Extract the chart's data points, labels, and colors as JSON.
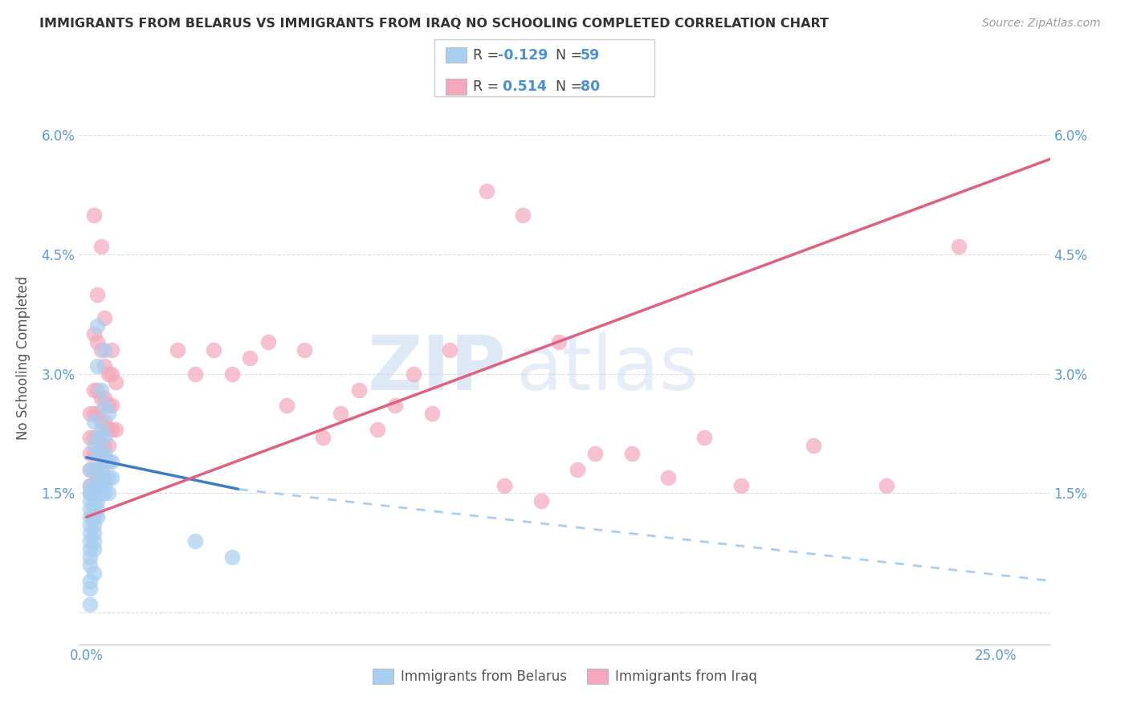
{
  "title": "IMMIGRANTS FROM BELARUS VS IMMIGRANTS FROM IRAQ NO SCHOOLING COMPLETED CORRELATION CHART",
  "source": "Source: ZipAtlas.com",
  "ylabel": "No Schooling Completed",
  "x_ticks": [
    0.0,
    0.05,
    0.1,
    0.15,
    0.2,
    0.25
  ],
  "x_tick_labels_bottom": [
    "0.0%",
    "",
    "",
    "",
    "",
    "25.0%"
  ],
  "y_ticks": [
    0.0,
    0.015,
    0.03,
    0.045,
    0.06
  ],
  "y_tick_labels_left": [
    "",
    "1.5%",
    "3.0%",
    "4.5%",
    "6.0%"
  ],
  "y_tick_labels_right": [
    "",
    "1.5%",
    "3.0%",
    "4.5%",
    "6.0%"
  ],
  "xlim": [
    -0.002,
    0.265
  ],
  "ylim": [
    -0.004,
    0.068
  ],
  "color_belarus": "#a8cef0",
  "color_iraq": "#f4a8bc",
  "color_line_belarus": "#3a7ec8",
  "color_line_iraq": "#e06080",
  "color_trendline_dashed": "#a8cef0",
  "watermark_zip": "ZIP",
  "watermark_atlas": "atlas",
  "background_color": "#ffffff",
  "grid_color": "#dedede",
  "tick_color": "#5b9bd5",
  "scatter_belarus": [
    [
      0.003,
      0.036
    ],
    [
      0.005,
      0.033
    ],
    [
      0.003,
      0.031
    ],
    [
      0.004,
      0.028
    ],
    [
      0.005,
      0.026
    ],
    [
      0.006,
      0.025
    ],
    [
      0.002,
      0.024
    ],
    [
      0.004,
      0.023
    ],
    [
      0.003,
      0.022
    ],
    [
      0.005,
      0.022
    ],
    [
      0.002,
      0.021
    ],
    [
      0.003,
      0.02
    ],
    [
      0.004,
      0.02
    ],
    [
      0.005,
      0.02
    ],
    [
      0.006,
      0.019
    ],
    [
      0.007,
      0.019
    ],
    [
      0.001,
      0.018
    ],
    [
      0.002,
      0.018
    ],
    [
      0.003,
      0.018
    ],
    [
      0.004,
      0.018
    ],
    [
      0.005,
      0.017
    ],
    [
      0.006,
      0.017
    ],
    [
      0.007,
      0.017
    ],
    [
      0.001,
      0.016
    ],
    [
      0.002,
      0.016
    ],
    [
      0.003,
      0.016
    ],
    [
      0.004,
      0.016
    ],
    [
      0.005,
      0.016
    ],
    [
      0.001,
      0.015
    ],
    [
      0.002,
      0.015
    ],
    [
      0.003,
      0.015
    ],
    [
      0.004,
      0.015
    ],
    [
      0.005,
      0.015
    ],
    [
      0.006,
      0.015
    ],
    [
      0.001,
      0.014
    ],
    [
      0.002,
      0.014
    ],
    [
      0.003,
      0.014
    ],
    [
      0.001,
      0.013
    ],
    [
      0.002,
      0.013
    ],
    [
      0.003,
      0.013
    ],
    [
      0.001,
      0.012
    ],
    [
      0.002,
      0.012
    ],
    [
      0.003,
      0.012
    ],
    [
      0.001,
      0.011
    ],
    [
      0.002,
      0.011
    ],
    [
      0.001,
      0.01
    ],
    [
      0.002,
      0.01
    ],
    [
      0.001,
      0.009
    ],
    [
      0.002,
      0.009
    ],
    [
      0.001,
      0.008
    ],
    [
      0.002,
      0.008
    ],
    [
      0.001,
      0.007
    ],
    [
      0.001,
      0.006
    ],
    [
      0.002,
      0.005
    ],
    [
      0.001,
      0.004
    ],
    [
      0.001,
      0.003
    ],
    [
      0.001,
      0.001
    ],
    [
      0.03,
      0.009
    ],
    [
      0.04,
      0.007
    ]
  ],
  "scatter_iraq": [
    [
      0.002,
      0.05
    ],
    [
      0.004,
      0.046
    ],
    [
      0.003,
      0.04
    ],
    [
      0.005,
      0.037
    ],
    [
      0.002,
      0.035
    ],
    [
      0.003,
      0.034
    ],
    [
      0.007,
      0.033
    ],
    [
      0.004,
      0.033
    ],
    [
      0.005,
      0.031
    ],
    [
      0.006,
      0.03
    ],
    [
      0.007,
      0.03
    ],
    [
      0.008,
      0.029
    ],
    [
      0.002,
      0.028
    ],
    [
      0.003,
      0.028
    ],
    [
      0.004,
      0.027
    ],
    [
      0.005,
      0.027
    ],
    [
      0.006,
      0.026
    ],
    [
      0.007,
      0.026
    ],
    [
      0.001,
      0.025
    ],
    [
      0.002,
      0.025
    ],
    [
      0.003,
      0.025
    ],
    [
      0.004,
      0.024
    ],
    [
      0.005,
      0.024
    ],
    [
      0.006,
      0.023
    ],
    [
      0.007,
      0.023
    ],
    [
      0.008,
      0.023
    ],
    [
      0.001,
      0.022
    ],
    [
      0.002,
      0.022
    ],
    [
      0.003,
      0.022
    ],
    [
      0.004,
      0.021
    ],
    [
      0.005,
      0.021
    ],
    [
      0.006,
      0.021
    ],
    [
      0.001,
      0.02
    ],
    [
      0.002,
      0.02
    ],
    [
      0.003,
      0.02
    ],
    [
      0.004,
      0.02
    ],
    [
      0.005,
      0.019
    ],
    [
      0.006,
      0.019
    ],
    [
      0.001,
      0.018
    ],
    [
      0.002,
      0.018
    ],
    [
      0.003,
      0.017
    ],
    [
      0.004,
      0.017
    ],
    [
      0.005,
      0.017
    ],
    [
      0.001,
      0.016
    ],
    [
      0.002,
      0.016
    ],
    [
      0.003,
      0.016
    ],
    [
      0.001,
      0.015
    ],
    [
      0.002,
      0.015
    ],
    [
      0.025,
      0.033
    ],
    [
      0.03,
      0.03
    ],
    [
      0.035,
      0.033
    ],
    [
      0.04,
      0.03
    ],
    [
      0.06,
      0.033
    ],
    [
      0.07,
      0.025
    ],
    [
      0.08,
      0.023
    ],
    [
      0.1,
      0.033
    ],
    [
      0.11,
      0.053
    ],
    [
      0.13,
      0.034
    ],
    [
      0.14,
      0.02
    ],
    [
      0.16,
      0.017
    ],
    [
      0.17,
      0.022
    ],
    [
      0.18,
      0.016
    ],
    [
      0.2,
      0.021
    ],
    [
      0.22,
      0.016
    ],
    [
      0.24,
      0.046
    ],
    [
      0.05,
      0.034
    ],
    [
      0.045,
      0.032
    ],
    [
      0.075,
      0.028
    ],
    [
      0.085,
      0.026
    ],
    [
      0.09,
      0.03
    ],
    [
      0.095,
      0.025
    ],
    [
      0.115,
      0.016
    ],
    [
      0.125,
      0.014
    ],
    [
      0.135,
      0.018
    ],
    [
      0.15,
      0.02
    ],
    [
      0.055,
      0.026
    ],
    [
      0.065,
      0.022
    ],
    [
      0.12,
      0.05
    ]
  ],
  "trendline_belarus_solid": {
    "x_start": 0.0,
    "y_start": 0.0195,
    "x_end": 0.042,
    "y_end": 0.0155
  },
  "trendline_belarus_dashed": {
    "x_start": 0.042,
    "y_start": 0.0155,
    "x_end": 0.265,
    "y_end": 0.004
  },
  "trendline_iraq": {
    "x_start": 0.0,
    "y_start": 0.012,
    "x_end": 0.265,
    "y_end": 0.057
  }
}
